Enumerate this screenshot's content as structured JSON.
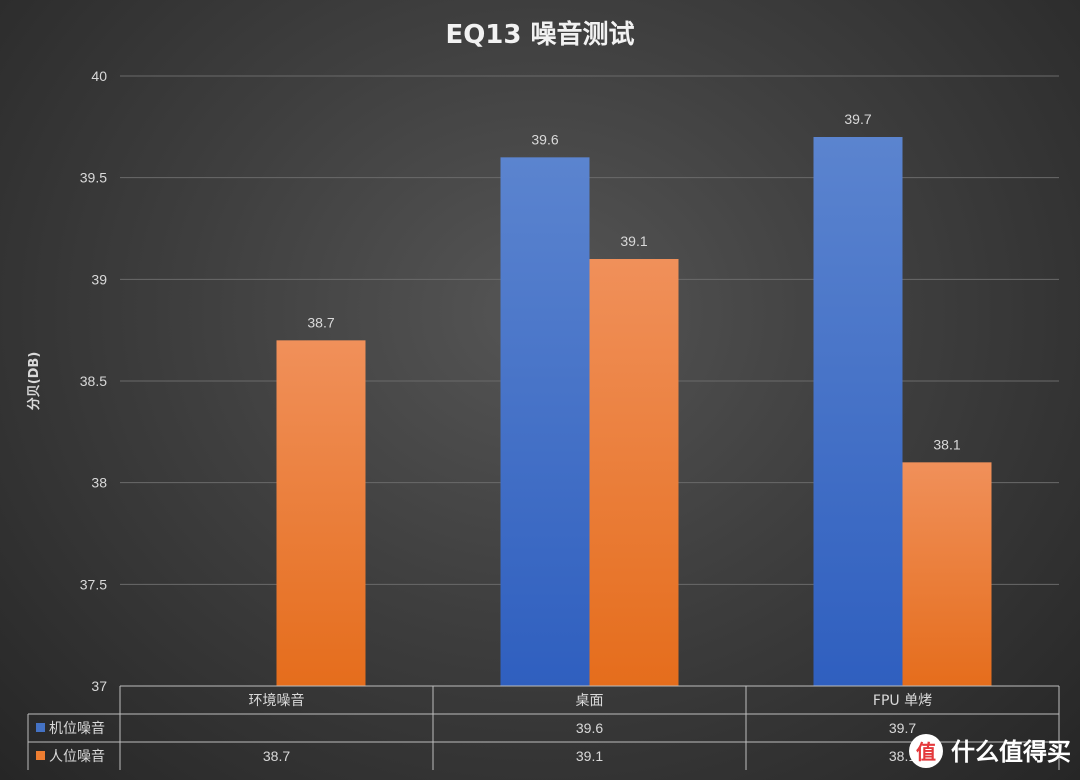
{
  "chart_data": {
    "type": "bar",
    "title": "EQ13 噪音测试",
    "ylabel": "分贝(DB)",
    "ylim": [
      37,
      40
    ],
    "yticks": [
      "37",
      "37.5",
      "38",
      "38.5",
      "39",
      "39.5",
      "40"
    ],
    "categories": [
      "环境噪音",
      "桌面",
      "FPU 单烤"
    ],
    "series": [
      {
        "name": "机位噪音",
        "color": "#4472c4",
        "values": [
          null,
          39.6,
          39.7
        ],
        "labels": [
          "",
          "39.6",
          "39.7"
        ]
      },
      {
        "name": "人位噪音",
        "color": "#ed7d31",
        "values": [
          38.7,
          39.1,
          38.1
        ],
        "labels": [
          "38.7",
          "39.1",
          "38.1"
        ]
      }
    ],
    "grid": true,
    "legend": "data-table"
  },
  "watermark": {
    "text": "什么值得买",
    "icon": "zhi-logo-icon"
  }
}
